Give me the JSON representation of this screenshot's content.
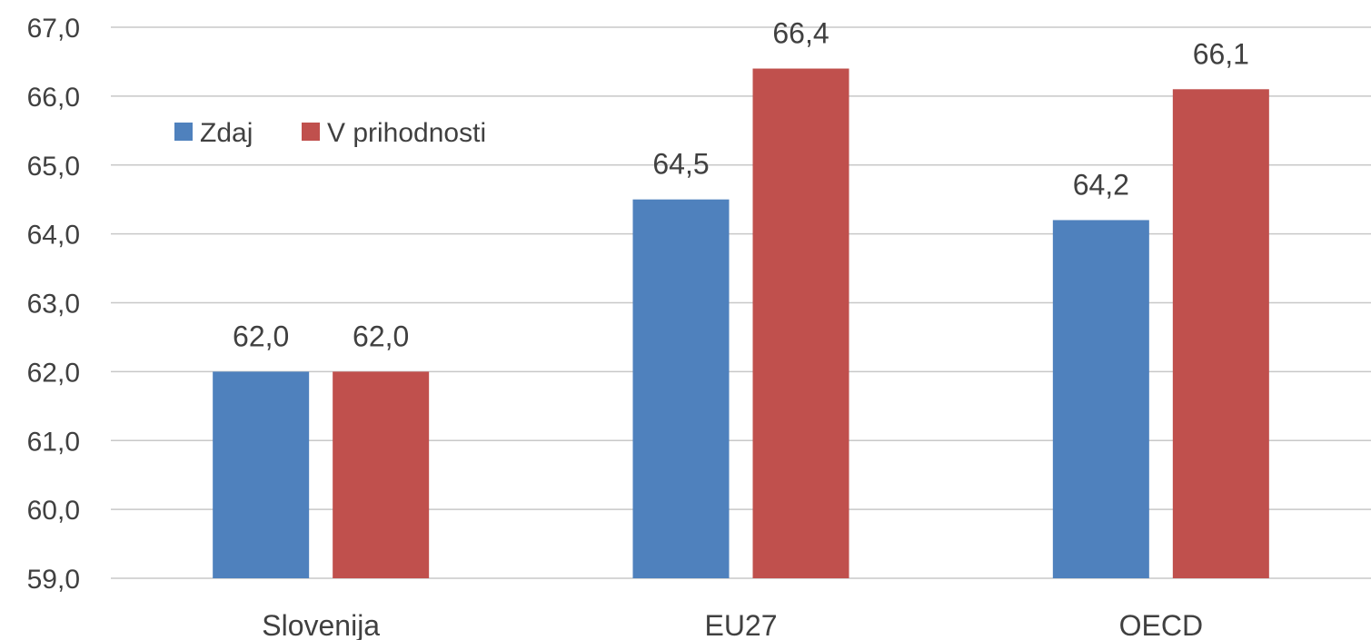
{
  "chart_data": {
    "type": "bar",
    "title": "",
    "xlabel": "",
    "ylabel": "",
    "categories": [
      "Slovenija",
      "EU27",
      "OECD"
    ],
    "series": [
      {
        "name": "Zdaj",
        "values": [
          62.0,
          64.5,
          64.2
        ],
        "labels": [
          "62,0",
          "64,5",
          "64,2"
        ],
        "color": "#4f81bd"
      },
      {
        "name": "V prihodnosti",
        "values": [
          62.0,
          66.4,
          66.1
        ],
        "labels": [
          "62,0",
          "66,4",
          "66,1"
        ],
        "color": "#c0504d"
      }
    ],
    "ylim": [
      59,
      67
    ],
    "yticks": [
      {
        "value": 59,
        "label": "59,0"
      },
      {
        "value": 60,
        "label": "60,0"
      },
      {
        "value": 61,
        "label": "61,0"
      },
      {
        "value": 62,
        "label": "62,0"
      },
      {
        "value": 63,
        "label": "63,0"
      },
      {
        "value": 64,
        "label": "64,0"
      },
      {
        "value": 65,
        "label": "65,0"
      },
      {
        "value": 66,
        "label": "66,0"
      },
      {
        "value": 67,
        "label": "67,0"
      }
    ],
    "grid": true,
    "legend_position": "top-left"
  }
}
